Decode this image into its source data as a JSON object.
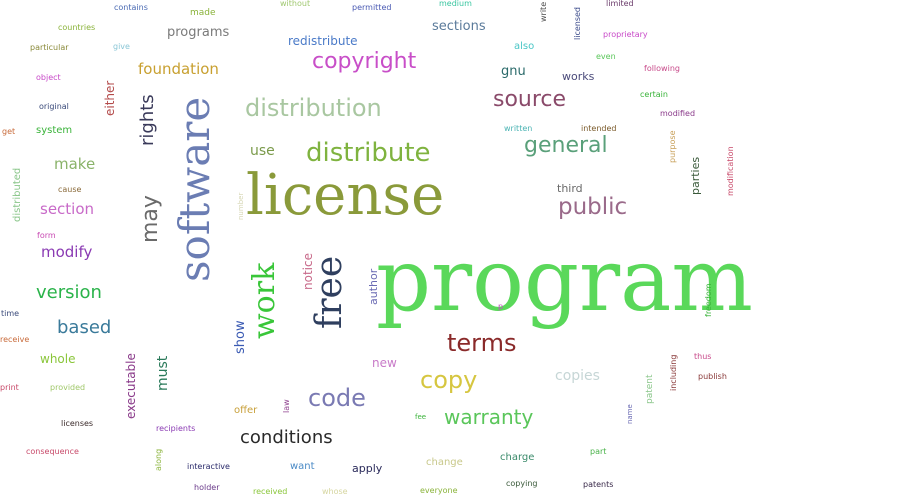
{
  "words": [
    {
      "text": "program",
      "color": "#5ad85a"
    },
    {
      "text": "license",
      "color": "#8a9a3a"
    },
    {
      "text": "software",
      "color": "#6b7db3"
    },
    {
      "text": "free",
      "color": "#2f3f5f"
    },
    {
      "text": "work",
      "color": "#39c639"
    },
    {
      "text": "distribute",
      "color": "#7fb33f"
    },
    {
      "text": "distribution",
      "color": "#a9c7a1"
    },
    {
      "text": "source",
      "color": "#8a4a6a"
    },
    {
      "text": "copyright",
      "color": "#c84ec8"
    },
    {
      "text": "general",
      "color": "#5aa07a"
    },
    {
      "text": "public",
      "color": "#9a6a8a"
    },
    {
      "text": "terms",
      "color": "#8a2a2a"
    },
    {
      "text": "copy",
      "color": "#d6c640"
    },
    {
      "text": "code",
      "color": "#7a7ab3"
    },
    {
      "text": "warranty",
      "color": "#5ac65a"
    },
    {
      "text": "conditions",
      "color": "#2a2a2a"
    },
    {
      "text": "may",
      "color": "#6a6a6a"
    },
    {
      "text": "rights",
      "color": "#3a3a5a"
    },
    {
      "text": "foundation",
      "color": "#c8a030"
    },
    {
      "text": "programs",
      "color": "#7a7a7a"
    },
    {
      "text": "redistribute",
      "color": "#4a7ac8"
    },
    {
      "text": "sections",
      "color": "#5a7a9a"
    },
    {
      "text": "gnu",
      "color": "#2a6a6a"
    },
    {
      "text": "works",
      "color": "#4a4a7a"
    },
    {
      "text": "use",
      "color": "#7a9a4a"
    },
    {
      "text": "make",
      "color": "#8ab36a"
    },
    {
      "text": "section",
      "color": "#c86ac8"
    },
    {
      "text": "modify",
      "color": "#8a3ab3"
    },
    {
      "text": "version",
      "color": "#2ab34a"
    },
    {
      "text": "based",
      "color": "#3a7a9a"
    },
    {
      "text": "whole",
      "color": "#8ac63a"
    },
    {
      "text": "executable",
      "color": "#8a3a8a"
    },
    {
      "text": "must",
      "color": "#2a7a5a"
    },
    {
      "text": "show",
      "color": "#3a5ab3"
    },
    {
      "text": "notice",
      "color": "#c86a8a"
    },
    {
      "text": "author",
      "color": "#6a6ab3"
    },
    {
      "text": "new",
      "color": "#c87ac8"
    },
    {
      "text": "copies",
      "color": "#c6d6d6"
    },
    {
      "text": "third",
      "color": "#6a6a6a"
    },
    {
      "text": "parties",
      "color": "#3a5a3a"
    },
    {
      "text": "either",
      "color": "#b34a4a"
    },
    {
      "text": "also",
      "color": "#4ac6c6"
    },
    {
      "text": "even",
      "color": "#5ac65a"
    },
    {
      "text": "following",
      "color": "#c84a8a"
    },
    {
      "text": "certain",
      "color": "#3ab33a"
    },
    {
      "text": "modified",
      "color": "#8a3a8a"
    },
    {
      "text": "written",
      "color": "#4ab3b3"
    },
    {
      "text": "intended",
      "color": "#7a5a2a"
    },
    {
      "text": "purpose",
      "color": "#c8a05a"
    },
    {
      "text": "modification",
      "color": "#c84a6a"
    },
    {
      "text": "contains",
      "color": "#4a6ab3"
    },
    {
      "text": "made",
      "color": "#8ab33a"
    },
    {
      "text": "without",
      "color": "#a0c870"
    },
    {
      "text": "permitted",
      "color": "#4a5ab3"
    },
    {
      "text": "medium",
      "color": "#3ac6a0"
    },
    {
      "text": "write",
      "color": "#4a4a4a"
    },
    {
      "text": "licensed",
      "color": "#3a4a8a"
    },
    {
      "text": "limited",
      "color": "#6a3a6a"
    },
    {
      "text": "proprietary",
      "color": "#c84ac8"
    },
    {
      "text": "countries",
      "color": "#8ab33a"
    },
    {
      "text": "particular",
      "color": "#8a8a3a"
    },
    {
      "text": "give",
      "color": "#8ac6d6"
    },
    {
      "text": "object",
      "color": "#c84ac8"
    },
    {
      "text": "original",
      "color": "#3a4a7a"
    },
    {
      "text": "get",
      "color": "#c86a3a"
    },
    {
      "text": "system",
      "color": "#3ab33a"
    },
    {
      "text": "distributed",
      "color": "#8ac68a"
    },
    {
      "text": "cause",
      "color": "#8a6a3a"
    },
    {
      "text": "form",
      "color": "#c84ab3"
    },
    {
      "text": "number",
      "color": "#d6d6b3"
    },
    {
      "text": "time",
      "color": "#3a4a7a"
    },
    {
      "text": "receive",
      "color": "#c86a3a"
    },
    {
      "text": "print",
      "color": "#c84a6a"
    },
    {
      "text": "provided",
      "color": "#a0c86a"
    },
    {
      "text": "licenses",
      "color": "#3a2a2a"
    },
    {
      "text": "consequence",
      "color": "#c84a6a"
    },
    {
      "text": "recipients",
      "color": "#8a3ab3"
    },
    {
      "text": "along",
      "color": "#8ab33a"
    },
    {
      "text": "interactive",
      "color": "#2a2a6a"
    },
    {
      "text": "holder",
      "color": "#6a3a8a"
    },
    {
      "text": "received",
      "color": "#8ac63a"
    },
    {
      "text": "whose",
      "color": "#d6d6a0"
    },
    {
      "text": "want",
      "color": "#4a8ac6"
    },
    {
      "text": "apply",
      "color": "#2a2a5a"
    },
    {
      "text": "offer",
      "color": "#c8a03a"
    },
    {
      "text": "law",
      "color": "#8a3a8a"
    },
    {
      "text": "fee",
      "color": "#3ab33a"
    },
    {
      "text": "change",
      "color": "#c8c88a"
    },
    {
      "text": "charge",
      "color": "#3a8a6a"
    },
    {
      "text": "everyone",
      "color": "#8ab33a"
    },
    {
      "text": "copying",
      "color": "#3a5a3a"
    },
    {
      "text": "patents",
      "color": "#3a2a4a"
    },
    {
      "text": "part",
      "color": "#4ab34a"
    },
    {
      "text": "name",
      "color": "#6a6ab3"
    },
    {
      "text": "patent",
      "color": "#8ac68a"
    },
    {
      "text": "including",
      "color": "#8a3a3a"
    },
    {
      "text": "thus",
      "color": "#c84a8a"
    },
    {
      "text": "publish",
      "color": "#8a3a3a"
    },
    {
      "text": "freedom",
      "color": "#3ab33a"
    },
    {
      "text": "p",
      "color": "#c84ac8"
    }
  ]
}
